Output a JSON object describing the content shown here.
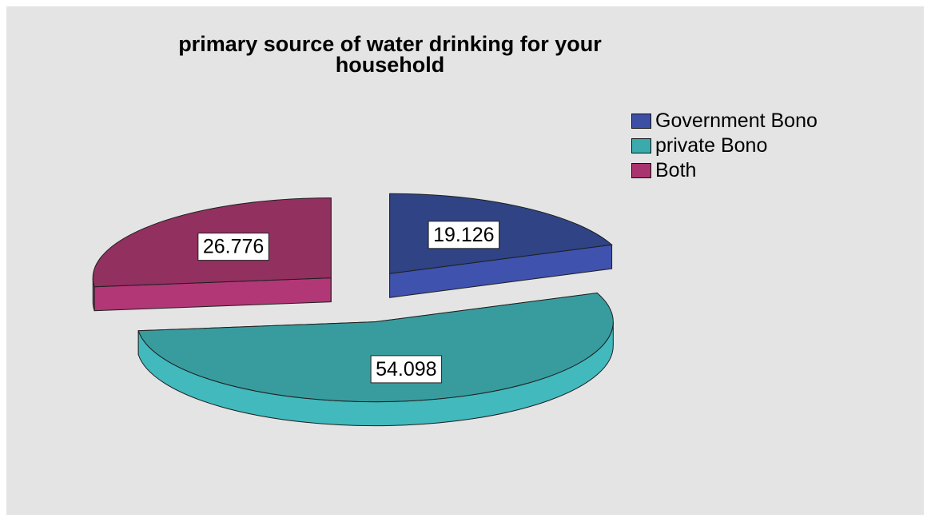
{
  "chart_data": {
    "type": "pie",
    "title": "primary source of water drinking for your household",
    "title_lines": [
      "primary source of water drinking for your",
      "household"
    ],
    "categories": [
      "Government Bono",
      "private Bono",
      "Both"
    ],
    "values": [
      19.126,
      54.098,
      26.776
    ],
    "value_labels": [
      "19.126",
      "54.098",
      "26.776"
    ],
    "colors": [
      "#3c4fa5",
      "#3aaaac",
      "#a8336e"
    ],
    "top_colors": [
      "#2f4385",
      "#389c9f",
      "#92305f"
    ],
    "side_colors": [
      "#3f52ad",
      "#41b9bd",
      "#b23777"
    ],
    "exploded": true,
    "legend_position": "top-right",
    "style": "3d-exploded"
  }
}
